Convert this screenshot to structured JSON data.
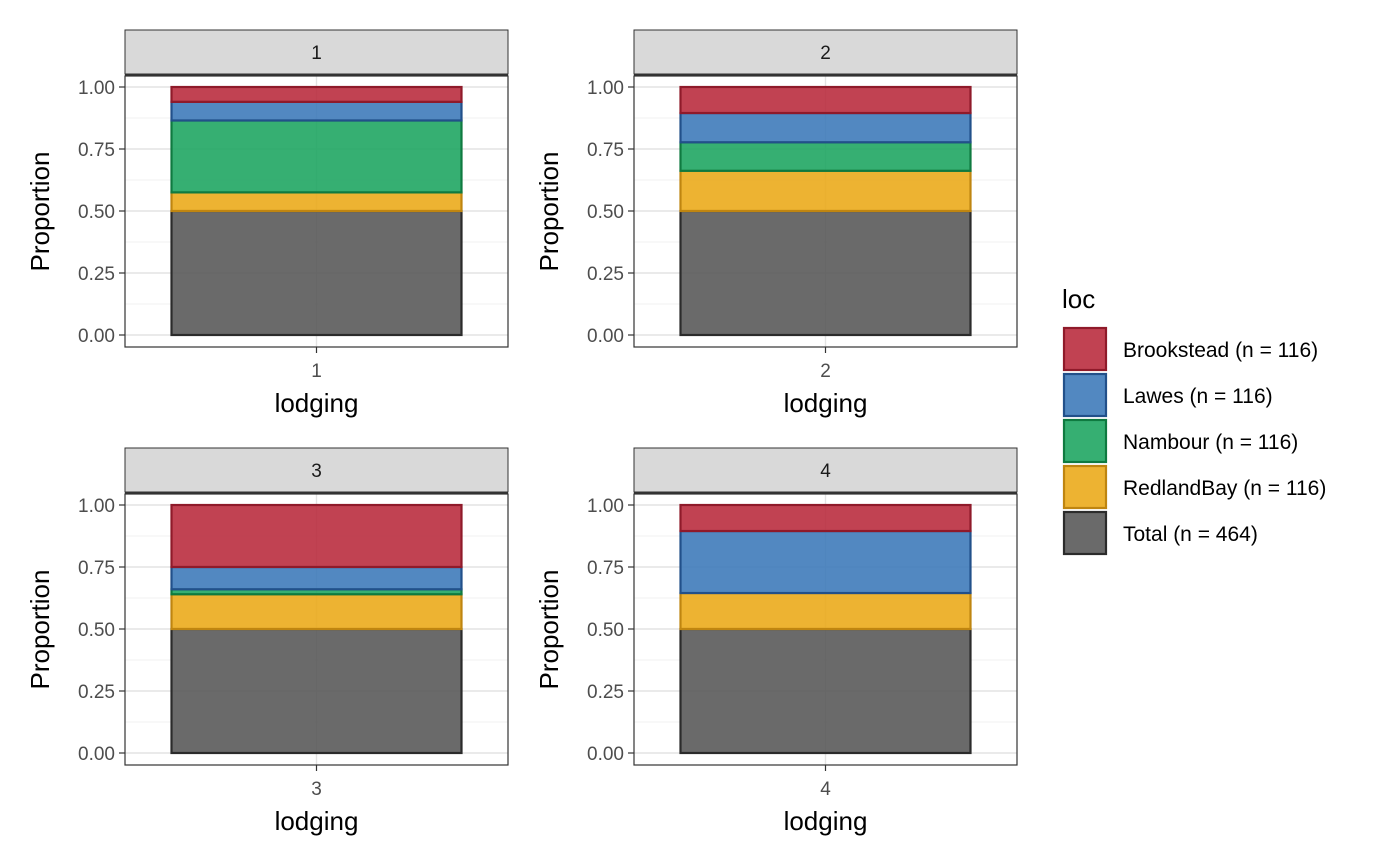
{
  "chart_data": {
    "type": "bar",
    "stacked": true,
    "facet_variable": "lodging",
    "xlabel": "lodging",
    "ylabel": "Proportion",
    "ylim": [
      0,
      1.05
    ],
    "yticks": [
      "0.00",
      "0.25",
      "0.50",
      "0.75",
      "1.00"
    ],
    "grid": true,
    "legend": {
      "title": "loc",
      "position": "right",
      "entries": [
        {
          "label": "Brookstead (n = 116)",
          "fill": "#b8283a",
          "stroke": "#8f1a2a"
        },
        {
          "label": "Lawes (n = 116)",
          "fill": "#3a77b8",
          "stroke": "#22508a"
        },
        {
          "label": "Nambour (n = 116)",
          "fill": "#1aa45e",
          "stroke": "#0f7a40"
        },
        {
          "label": "RedlandBay (n = 116)",
          "fill": "#eba816",
          "stroke": "#bf8510"
        },
        {
          "label": "Total (n = 464)",
          "fill": "#555555",
          "stroke": "#2b2b2b"
        }
      ]
    },
    "stack_order": [
      "Total (n = 464)",
      "RedlandBay (n = 116)",
      "Nambour (n = 116)",
      "Lawes (n = 116)",
      "Brookstead (n = 116)"
    ],
    "facets": [
      {
        "strip": "1",
        "category": "1",
        "values": {
          "Total (n = 464)": 0.5,
          "RedlandBay (n = 116)": 0.075,
          "Nambour (n = 116)": 0.29,
          "Lawes (n = 116)": 0.075,
          "Brookstead (n = 116)": 0.06
        }
      },
      {
        "strip": "2",
        "category": "2",
        "values": {
          "Total (n = 464)": 0.5,
          "RedlandBay (n = 116)": 0.162,
          "Nambour (n = 116)": 0.115,
          "Lawes (n = 116)": 0.118,
          "Brookstead (n = 116)": 0.105
        }
      },
      {
        "strip": "3",
        "category": "3",
        "values": {
          "Total (n = 464)": 0.5,
          "RedlandBay (n = 116)": 0.14,
          "Nambour (n = 116)": 0.02,
          "Lawes (n = 116)": 0.09,
          "Brookstead (n = 116)": 0.25
        }
      },
      {
        "strip": "4",
        "category": "4",
        "values": {
          "Total (n = 464)": 0.5,
          "RedlandBay (n = 116)": 0.145,
          "Nambour (n = 116)": 0.0,
          "Lawes (n = 116)": 0.25,
          "Brookstead (n = 116)": 0.105
        }
      }
    ]
  }
}
